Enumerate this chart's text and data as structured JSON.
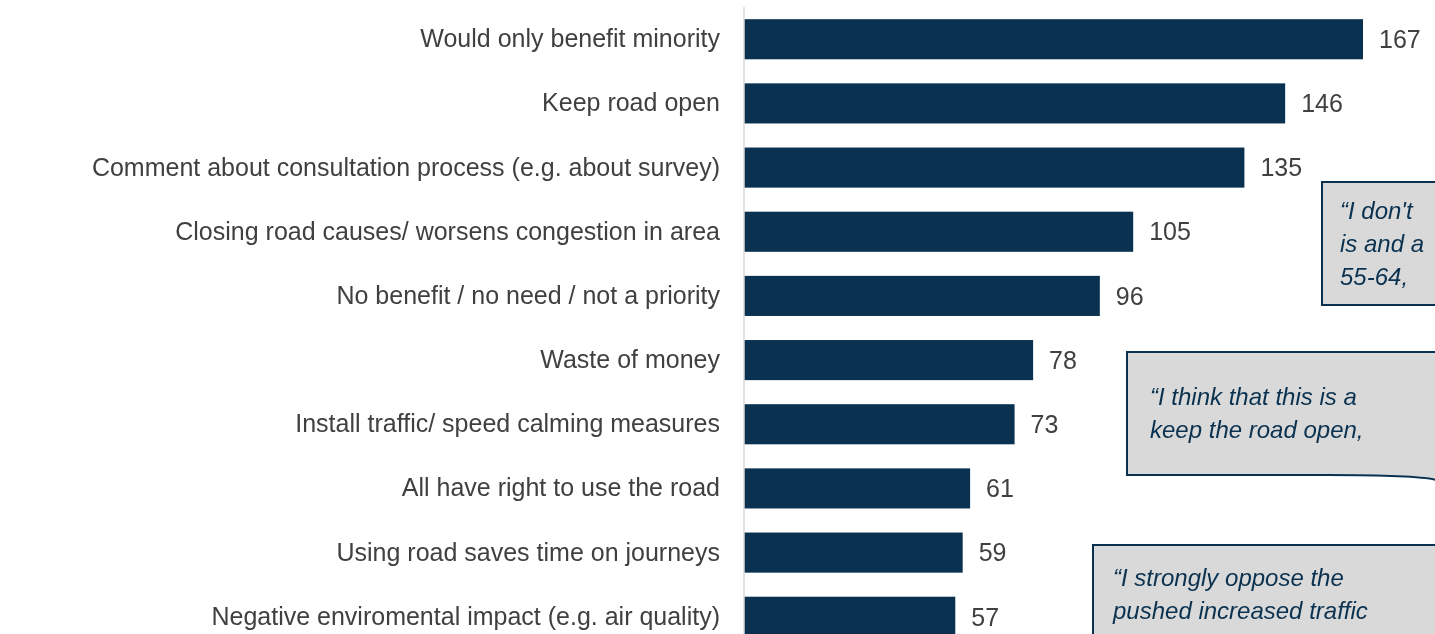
{
  "chart_data": {
    "type": "bar",
    "orientation": "horizontal",
    "data_labels": true,
    "categories": [
      "Would only benefit minority",
      "Keep road open",
      "Comment about consultation process (e.g. about survey)",
      "Closing road causes/ worsens congestion in area",
      "No benefit / no need / not a priority",
      "Waste of money",
      "Install traffic/ speed calming measures",
      "All have right to use the road",
      "Using road saves time on journeys",
      "Negative enviromental impact (e.g. air quality)"
    ],
    "values": [
      167,
      146,
      135,
      105,
      96,
      78,
      73,
      61,
      59,
      57
    ],
    "color": "#0a3250",
    "annotations": [
      "“I don't\nis and a\n55-64,",
      "“I think that this is a\nkeep the road open,",
      "“I strongly oppose the\npushed increased traffic"
    ]
  }
}
